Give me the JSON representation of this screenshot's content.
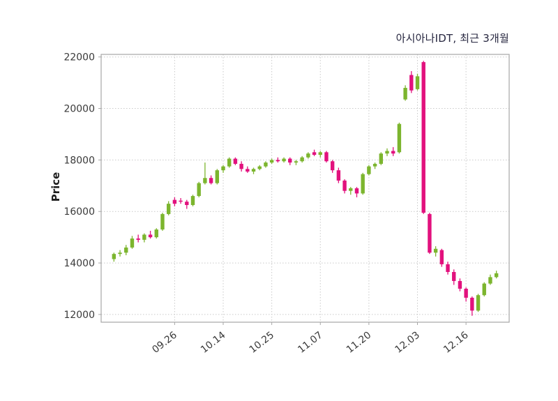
{
  "chart": {
    "title": "아시아나IDT, 최근 3개월",
    "ylabel": "Price"
  },
  "chart_data": {
    "type": "candlestick",
    "title": "아시아나IDT, 최근 3개월",
    "xlabel": "",
    "ylabel": "Price",
    "ylim": [
      11700,
      22100
    ],
    "yticks": [
      12000,
      14000,
      16000,
      18000,
      20000,
      22000
    ],
    "xticks": [
      {
        "index": 10,
        "label": "09.26"
      },
      {
        "index": 18,
        "label": "10.14"
      },
      {
        "index": 26,
        "label": "10.25"
      },
      {
        "index": 34,
        "label": "11.07"
      },
      {
        "index": 42,
        "label": "11.20"
      },
      {
        "index": 50,
        "label": "12.03"
      },
      {
        "index": 58,
        "label": "12.16"
      }
    ],
    "grid": true,
    "legend": "none",
    "colors": {
      "up": "#7cb52e",
      "down": "#e2117d",
      "grid": "#c9c9c9",
      "axis": "#a6a6a6",
      "tick_text": "#3a3a3a",
      "title_text": "#26263f",
      "background": "#ffffff"
    },
    "candles_format": "[open, high, low, close]",
    "candles": [
      [
        14150,
        14400,
        14050,
        14350
      ],
      [
        14350,
        14500,
        14250,
        14400
      ],
      [
        14400,
        14700,
        14300,
        14600
      ],
      [
        14600,
        15050,
        14550,
        14950
      ],
      [
        14950,
        15100,
        14800,
        14900
      ],
      [
        14900,
        15150,
        14800,
        15100
      ],
      [
        15100,
        15250,
        14950,
        15000
      ],
      [
        15000,
        15350,
        14950,
        15300
      ],
      [
        15300,
        15950,
        15250,
        15900
      ],
      [
        15900,
        16400,
        15850,
        16300
      ],
      [
        16450,
        16550,
        16200,
        16300
      ],
      [
        16420,
        16520,
        16300,
        16380
      ],
      [
        16380,
        16450,
        16100,
        16250
      ],
      [
        16250,
        16650,
        16200,
        16600
      ],
      [
        16600,
        17150,
        16550,
        17100
      ],
      [
        17100,
        17900,
        17050,
        17300
      ],
      [
        17300,
        17400,
        17050,
        17100
      ],
      [
        17100,
        17650,
        17050,
        17600
      ],
      [
        17600,
        17800,
        17500,
        17750
      ],
      [
        17750,
        18100,
        17700,
        18050
      ],
      [
        18050,
        18100,
        17800,
        17850
      ],
      [
        17850,
        17950,
        17550,
        17650
      ],
      [
        17650,
        17750,
        17500,
        17550
      ],
      [
        17550,
        17700,
        17450,
        17650
      ],
      [
        17650,
        17800,
        17600,
        17750
      ],
      [
        17750,
        17950,
        17700,
        17900
      ],
      [
        17900,
        18050,
        17850,
        18000
      ],
      [
        18000,
        18100,
        17900,
        17950
      ],
      [
        17950,
        18100,
        17900,
        18050
      ],
      [
        18050,
        18100,
        17800,
        17900
      ],
      [
        17900,
        18000,
        17800,
        17950
      ],
      [
        17950,
        18150,
        17900,
        18100
      ],
      [
        18100,
        18300,
        18050,
        18250
      ],
      [
        18300,
        18400,
        18150,
        18200
      ],
      [
        18200,
        18350,
        18100,
        18300
      ],
      [
        18300,
        18350,
        17900,
        17950
      ],
      [
        17950,
        18000,
        17500,
        17600
      ],
      [
        17600,
        17700,
        17100,
        17200
      ],
      [
        17200,
        17250,
        16700,
        16800
      ],
      [
        16800,
        16950,
        16650,
        16900
      ],
      [
        16900,
        16950,
        16550,
        16700
      ],
      [
        16700,
        17500,
        16650,
        17450
      ],
      [
        17450,
        17800,
        17400,
        17750
      ],
      [
        17750,
        17900,
        17650,
        17850
      ],
      [
        17850,
        18300,
        17800,
        18250
      ],
      [
        18250,
        18450,
        18150,
        18350
      ],
      [
        18350,
        18500,
        18150,
        18250
      ],
      [
        18300,
        19450,
        18250,
        19400
      ],
      [
        20350,
        20900,
        20300,
        20800
      ],
      [
        21300,
        21450,
        20600,
        20700
      ],
      [
        20750,
        21350,
        20700,
        21250
      ],
      [
        21800,
        21850,
        15900,
        15950
      ],
      [
        15900,
        15950,
        14350,
        14400
      ],
      [
        14400,
        14650,
        14250,
        14550
      ],
      [
        14500,
        14550,
        13850,
        13950
      ],
      [
        13950,
        14050,
        13550,
        13650
      ],
      [
        13650,
        13750,
        13150,
        13300
      ],
      [
        13300,
        13400,
        12900,
        13000
      ],
      [
        13000,
        13050,
        12500,
        12650
      ],
      [
        12650,
        12700,
        11950,
        12150
      ],
      [
        12150,
        12800,
        12100,
        12750
      ],
      [
        12750,
        13250,
        12700,
        13200
      ],
      [
        13200,
        13550,
        13150,
        13450
      ],
      [
        13450,
        13700,
        13400,
        13600
      ]
    ]
  }
}
